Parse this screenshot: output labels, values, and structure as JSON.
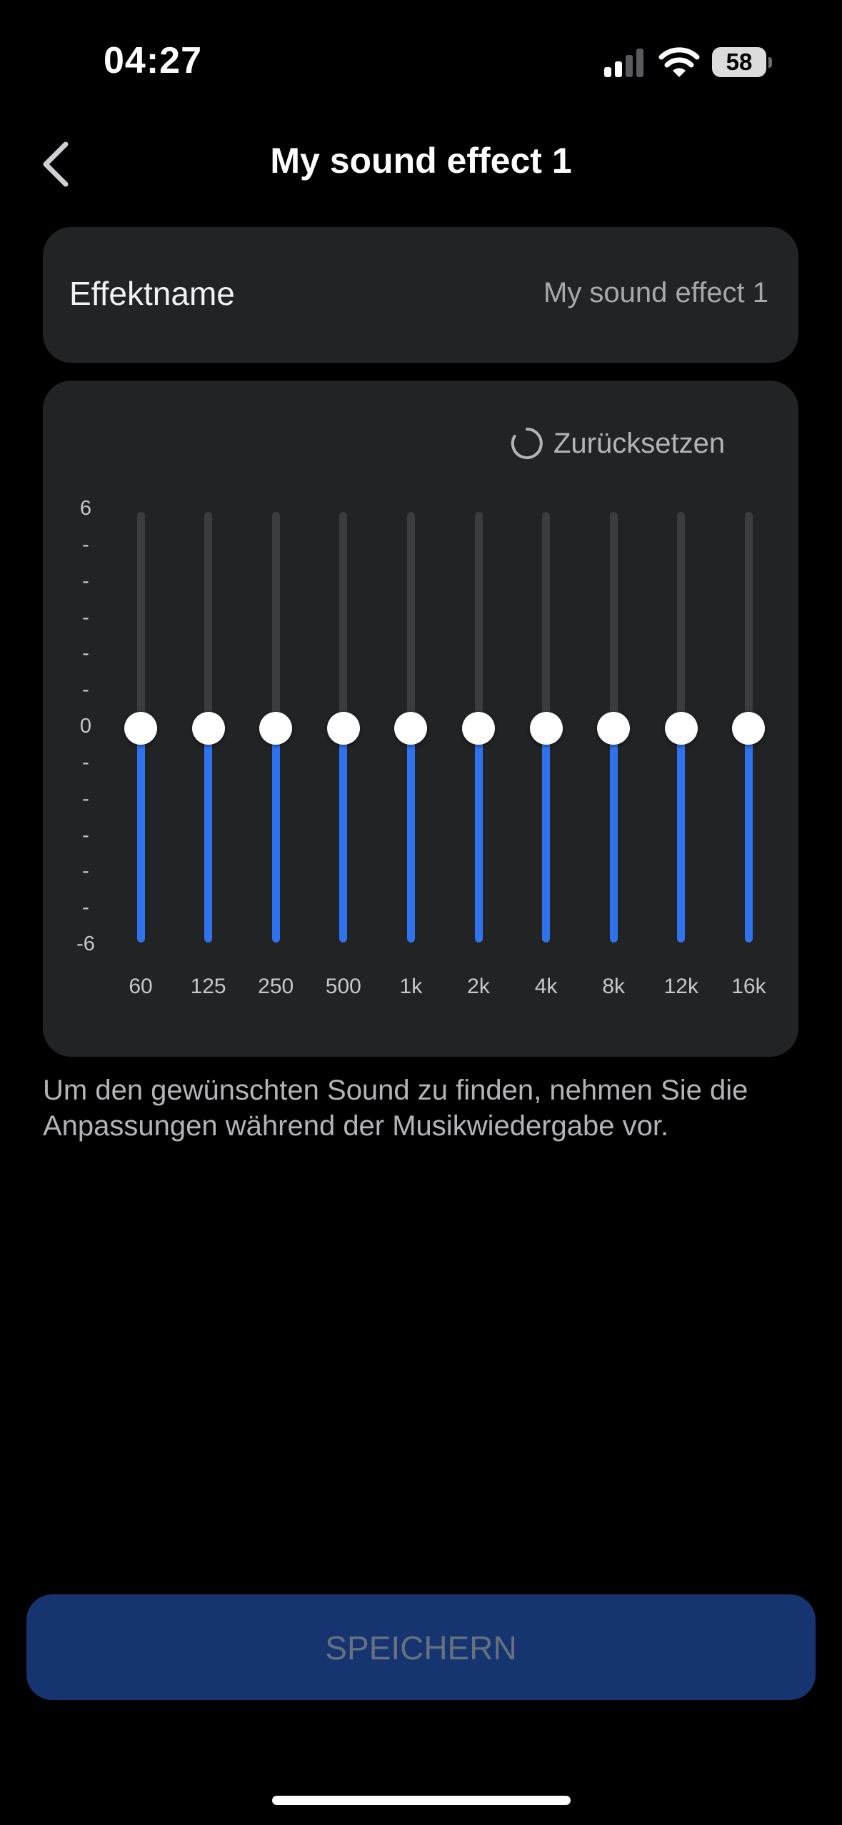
{
  "status_bar": {
    "time": "04:27",
    "battery": "58",
    "icons": [
      "signal-icon",
      "wifi-icon",
      "battery-icon"
    ]
  },
  "header": {
    "title": "My sound effect 1",
    "back_icon": "chevron-left-icon"
  },
  "effect_name": {
    "label": "Effektname",
    "value": "My sound effect 1"
  },
  "equalizer": {
    "reset_label": "Zurücksetzen",
    "reset_icon": "refresh-icon",
    "y_axis": [
      "6",
      "-",
      "-",
      "-",
      "-",
      "-",
      "0",
      "-",
      "-",
      "-",
      "-",
      "-",
      "-6"
    ],
    "y_range": [
      -6,
      6
    ],
    "bands": [
      {
        "label": "60",
        "value": 0
      },
      {
        "label": "125",
        "value": 0
      },
      {
        "label": "250",
        "value": 0
      },
      {
        "label": "500",
        "value": 0
      },
      {
        "label": "1k",
        "value": 0
      },
      {
        "label": "2k",
        "value": 0
      },
      {
        "label": "4k",
        "value": 0
      },
      {
        "label": "8k",
        "value": 0
      },
      {
        "label": "12k",
        "value": 0
      },
      {
        "label": "16k",
        "value": 0
      }
    ],
    "colors": {
      "fill": "#2f72ee",
      "track": "#3b3c3f",
      "knob": "#ffffff"
    }
  },
  "hint": "Um den gewünschten Sound zu finden, nehmen Sie die Anpassungen während der Musikwiedergabe vor.",
  "save_button": {
    "label": "SPEICHERN",
    "color": "#163470"
  }
}
